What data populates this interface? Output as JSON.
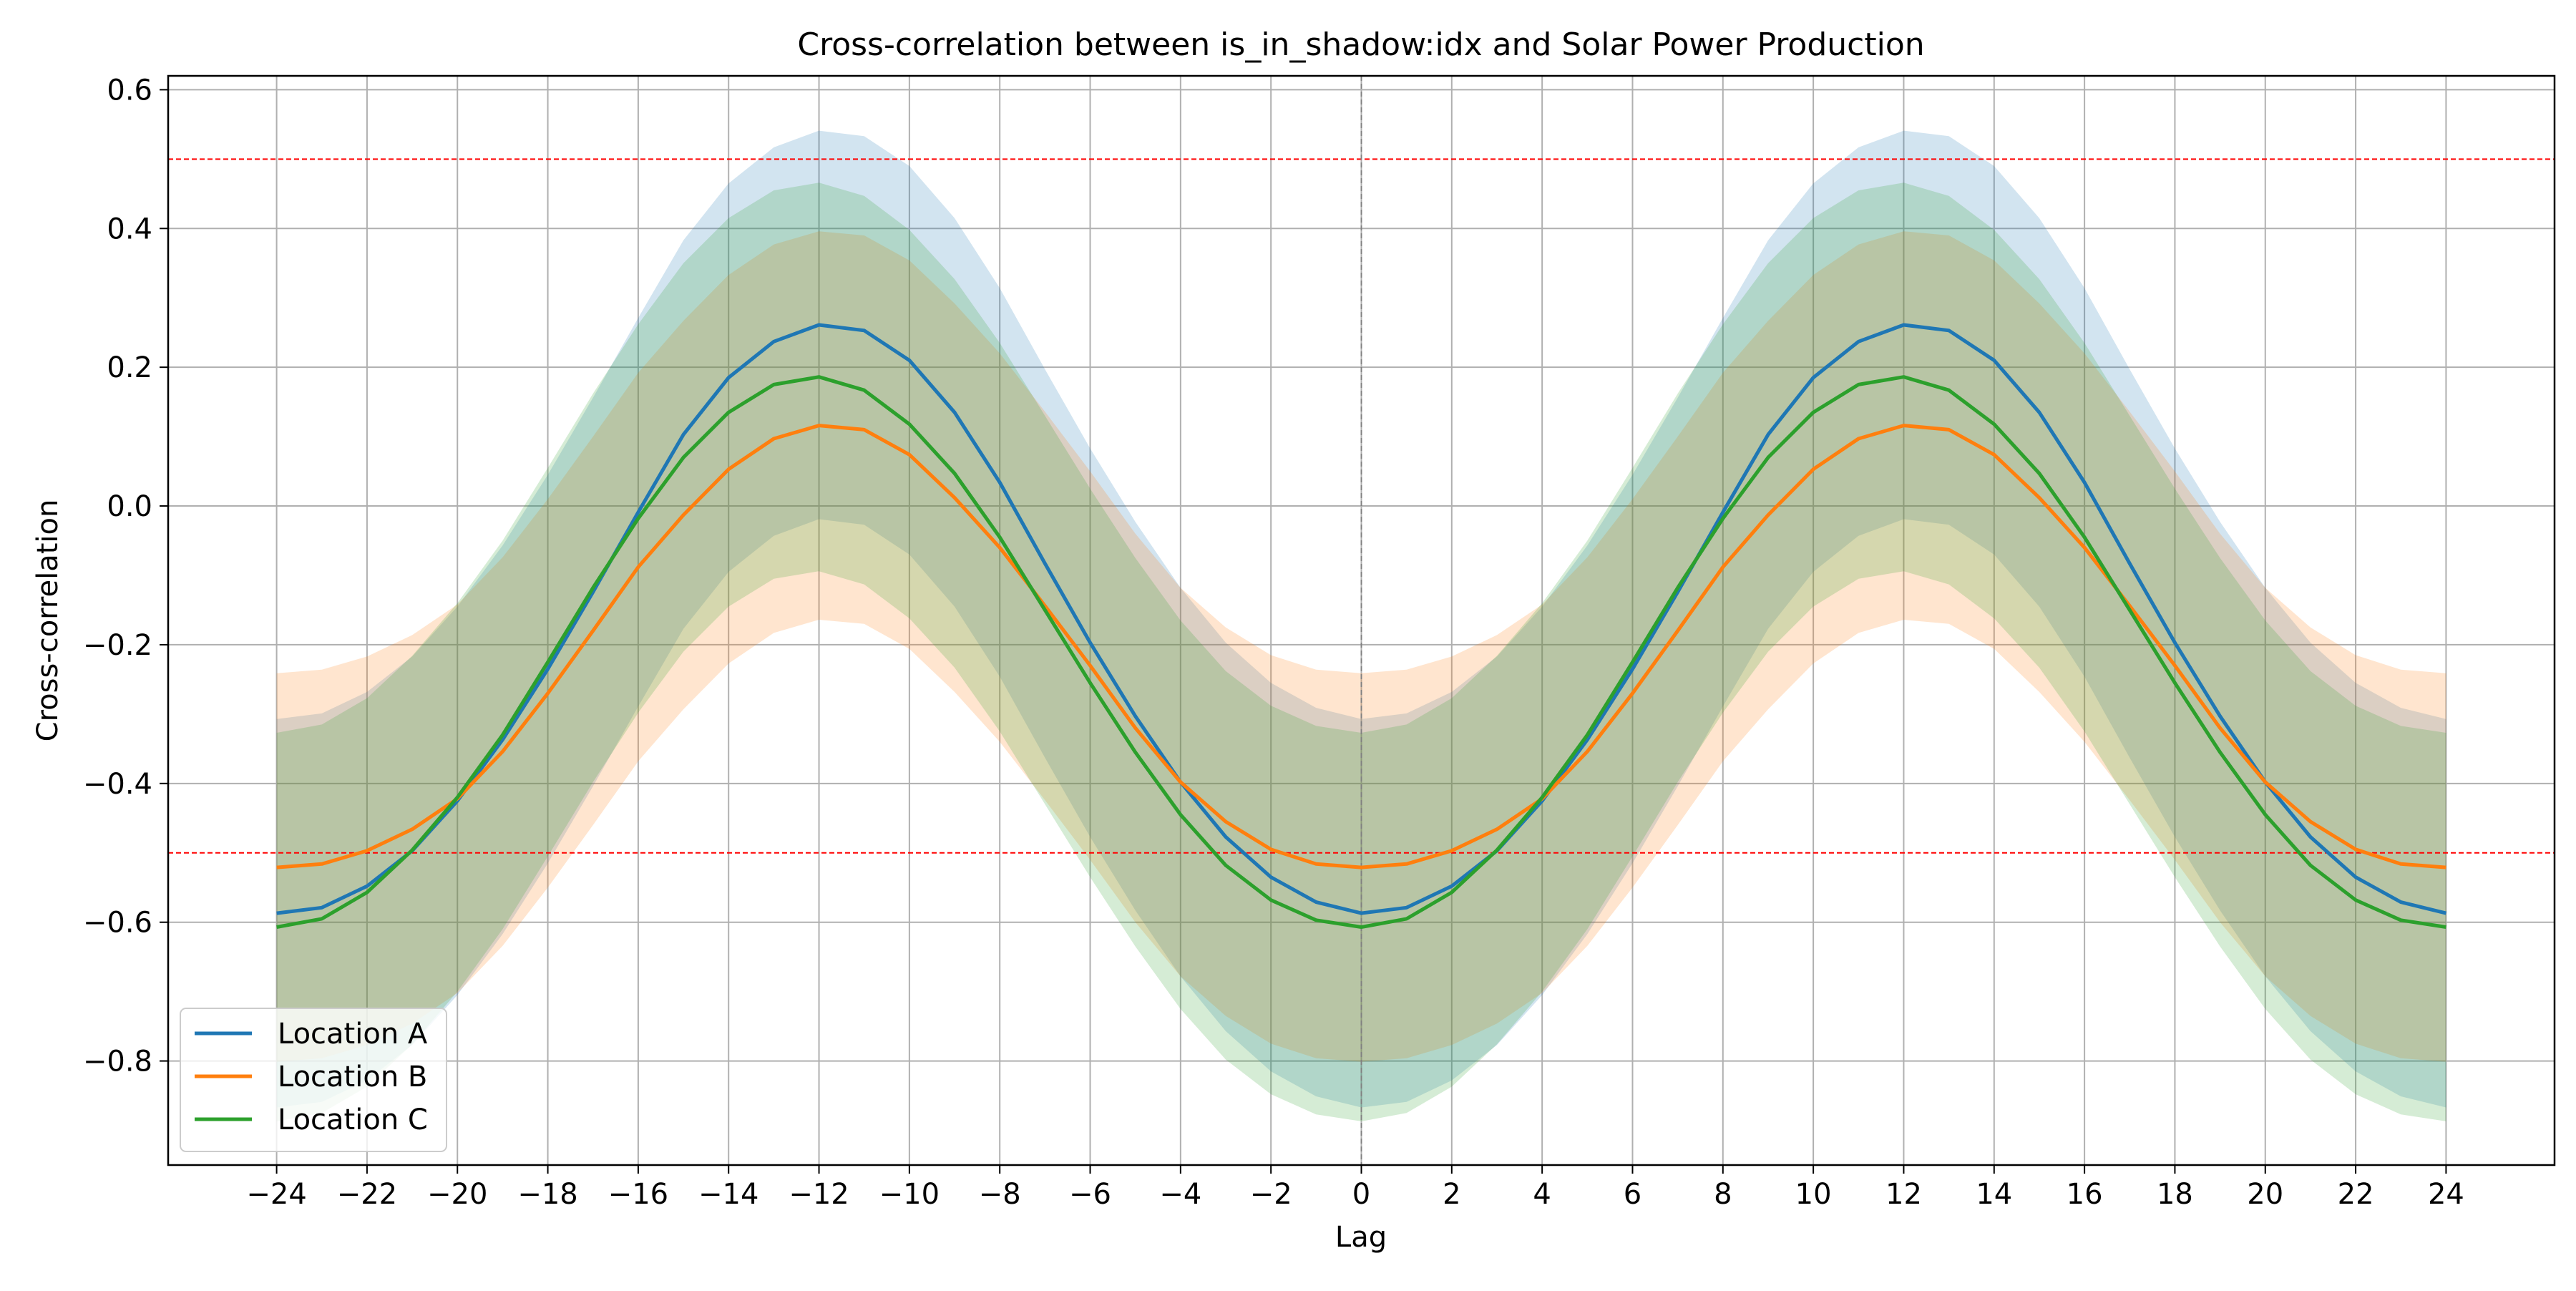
{
  "chart_data": {
    "type": "line",
    "title": "Cross-correlation between is_in_shadow:idx and Solar Power Production",
    "xlabel": "Lag",
    "ylabel": "Cross-correlation",
    "xlim": [
      -26.4,
      26.4
    ],
    "ylim": [
      -0.95,
      0.62
    ],
    "xticks": [
      -24,
      -22,
      -20,
      -18,
      -16,
      -14,
      -12,
      -10,
      -8,
      -6,
      -4,
      -2,
      0,
      2,
      4,
      6,
      8,
      10,
      12,
      14,
      16,
      18,
      20,
      22,
      24
    ],
    "xtick_labels": [
      "−24",
      "−22",
      "−20",
      "−18",
      "−16",
      "−14",
      "−12",
      "−10",
      "−8",
      "−6",
      "−4",
      "−2",
      "0",
      "2",
      "4",
      "6",
      "8",
      "10",
      "12",
      "14",
      "16",
      "18",
      "20",
      "22",
      "24"
    ],
    "yticks": [
      -0.8,
      -0.6,
      -0.4,
      -0.2,
      0.0,
      0.2,
      0.4,
      0.6
    ],
    "ytick_labels": [
      "−0.8",
      "−0.6",
      "−0.4",
      "−0.2",
      "0.0",
      "0.2",
      "0.4",
      "0.6"
    ],
    "grid": true,
    "legend_position": "lower-left",
    "x": [
      -24,
      -23,
      -22,
      -21,
      -20,
      -19,
      -18,
      -17,
      -16,
      -15,
      -14,
      -13,
      -12,
      -11,
      -10,
      -9,
      -8,
      -7,
      -6,
      -5,
      -4,
      -3,
      -2,
      -1,
      0,
      1,
      2,
      3,
      4,
      5,
      6,
      7,
      8,
      9,
      10,
      11,
      12,
      13,
      14,
      15,
      16,
      17,
      18,
      19,
      20,
      21,
      22,
      23,
      24
    ],
    "series": [
      {
        "name": "Location A",
        "color": "#1f77b4",
        "band_offset": 0.28,
        "values": [
          -0.587,
          -0.579,
          -0.548,
          -0.497,
          -0.425,
          -0.337,
          -0.235,
          -0.124,
          -0.009,
          0.103,
          0.185,
          0.237,
          0.261,
          0.253,
          0.21,
          0.135,
          0.034,
          -0.083,
          -0.197,
          -0.303,
          -0.398,
          -0.477,
          -0.535,
          -0.571,
          -0.587,
          -0.579,
          -0.548,
          -0.497,
          -0.425,
          -0.337,
          -0.235,
          -0.124,
          -0.009,
          0.103,
          0.185,
          0.237,
          0.261,
          0.253,
          0.21,
          0.135,
          0.034,
          -0.083,
          -0.197,
          -0.303,
          -0.398,
          -0.477,
          -0.535,
          -0.571,
          -0.587
        ]
      },
      {
        "name": "Location B",
        "color": "#ff7f0e",
        "band_offset": 0.28,
        "values": [
          -0.521,
          -0.516,
          -0.497,
          -0.466,
          -0.422,
          -0.354,
          -0.27,
          -0.18,
          -0.088,
          -0.013,
          0.053,
          0.097,
          0.116,
          0.11,
          0.074,
          0.012,
          -0.06,
          -0.144,
          -0.23,
          -0.32,
          -0.398,
          -0.455,
          -0.495,
          -0.516,
          -0.521,
          -0.516,
          -0.497,
          -0.466,
          -0.422,
          -0.354,
          -0.27,
          -0.18,
          -0.088,
          -0.013,
          0.053,
          0.097,
          0.116,
          0.11,
          0.074,
          0.012,
          -0.06,
          -0.144,
          -0.23,
          -0.32,
          -0.398,
          -0.455,
          -0.495,
          -0.516,
          -0.521
        ]
      },
      {
        "name": "Location C",
        "color": "#2ca02c",
        "band_offset": 0.28,
        "values": [
          -0.607,
          -0.595,
          -0.557,
          -0.496,
          -0.42,
          -0.33,
          -0.225,
          -0.118,
          -0.018,
          0.07,
          0.135,
          0.175,
          0.186,
          0.167,
          0.118,
          0.047,
          -0.045,
          -0.15,
          -0.255,
          -0.355,
          -0.445,
          -0.518,
          -0.568,
          -0.597,
          -0.607,
          -0.595,
          -0.557,
          -0.496,
          -0.42,
          -0.33,
          -0.225,
          -0.118,
          -0.018,
          0.07,
          0.135,
          0.175,
          0.186,
          0.167,
          0.118,
          0.047,
          -0.045,
          -0.15,
          -0.255,
          -0.355,
          -0.445,
          -0.518,
          -0.568,
          -0.597,
          -0.607
        ]
      }
    ],
    "reference_lines": [
      {
        "axis": "y",
        "value": 0.5,
        "color": "#ff0000",
        "style": "dashed"
      },
      {
        "axis": "y",
        "value": -0.5,
        "color": "#ff0000",
        "style": "dashed"
      },
      {
        "axis": "x",
        "value": 0,
        "color": "#808080",
        "style": "dashed"
      }
    ]
  }
}
